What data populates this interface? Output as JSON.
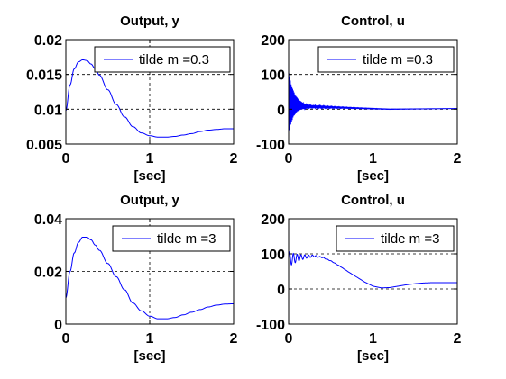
{
  "chart_data": [
    {
      "type": "line",
      "title": "Output, y",
      "xlabel": "[sec]",
      "ylabel": "",
      "xlim": [
        0,
        2
      ],
      "ylim": [
        0.005,
        0.02
      ],
      "xticks": [
        0,
        1,
        2
      ],
      "yticks": [
        0.005,
        0.01,
        0.015,
        0.02
      ],
      "ytick_labels": [
        "0.005",
        "0.01",
        "0.015",
        "0.02"
      ],
      "xtick_labels": [
        "0",
        "1",
        "2"
      ],
      "grid": true,
      "legend_position": "top-right",
      "series": [
        {
          "name": "tilde m =0.3",
          "color": "#0000ff",
          "x": [
            0,
            0.05,
            0.1,
            0.15,
            0.2,
            0.25,
            0.3,
            0.35,
            0.4,
            0.5,
            0.6,
            0.7,
            0.8,
            0.9,
            1.0,
            1.1,
            1.2,
            1.3,
            1.4,
            1.5,
            1.6,
            1.7,
            1.8,
            1.9,
            2.0
          ],
          "y": [
            0.0098,
            0.0135,
            0.0158,
            0.0168,
            0.0171,
            0.017,
            0.0165,
            0.0158,
            0.0149,
            0.0128,
            0.0107,
            0.0089,
            0.0075,
            0.0066,
            0.0062,
            0.006,
            0.006,
            0.0061,
            0.0063,
            0.0065,
            0.0068,
            0.007,
            0.0071,
            0.0072,
            0.0072
          ]
        }
      ]
    },
    {
      "type": "line",
      "title": "Control, u",
      "xlabel": "[sec]",
      "ylabel": "",
      "xlim": [
        0,
        2
      ],
      "ylim": [
        -100,
        200
      ],
      "xticks": [
        0,
        1,
        2
      ],
      "yticks": [
        -100,
        0,
        100,
        200
      ],
      "ytick_labels": [
        "-100",
        "0",
        "100",
        "200"
      ],
      "xtick_labels": [
        "0",
        "1",
        "2"
      ],
      "grid": true,
      "legend_position": "top-right",
      "series": [
        {
          "name": "tilde m =0.3",
          "color": "#0000ff",
          "description_values": {
            "oscillation_start_amplitude": 85,
            "oscillation_center": 18,
            "decay_time_constant": 0.06,
            "oscillation_period": 0.01,
            "steady_value_near_t1": 0,
            "value_at_t2": 2
          },
          "x": [
            0,
            0.1,
            0.2,
            0.4,
            0.6,
            0.8,
            1.0,
            1.2,
            1.4,
            1.6,
            1.8,
            2.0
          ],
          "y": [
            18,
            10,
            8,
            5,
            3,
            1,
            0,
            -1,
            0,
            1,
            2,
            2
          ]
        }
      ]
    },
    {
      "type": "line",
      "title": "Output, y",
      "xlabel": "[sec]",
      "ylabel": "",
      "xlim": [
        0,
        2
      ],
      "ylim": [
        0,
        0.04
      ],
      "xticks": [
        0,
        1,
        2
      ],
      "yticks": [
        0,
        0.02,
        0.04
      ],
      "ytick_labels": [
        "0",
        "0.02",
        "0.04"
      ],
      "xtick_labels": [
        "0",
        "1",
        "2"
      ],
      "grid": true,
      "legend_position": "top-right",
      "series": [
        {
          "name": "tilde m =3",
          "color": "#0000ff",
          "x": [
            0,
            0.05,
            0.1,
            0.15,
            0.2,
            0.25,
            0.3,
            0.35,
            0.4,
            0.5,
            0.6,
            0.7,
            0.8,
            0.9,
            1.0,
            1.1,
            1.2,
            1.3,
            1.4,
            1.5,
            1.6,
            1.7,
            1.8,
            1.9,
            2.0
          ],
          "y": [
            0.01,
            0.02,
            0.027,
            0.031,
            0.033,
            0.033,
            0.032,
            0.03,
            0.028,
            0.023,
            0.018,
            0.013,
            0.008,
            0.005,
            0.003,
            0.002,
            0.002,
            0.0025,
            0.0035,
            0.0045,
            0.0055,
            0.0065,
            0.0072,
            0.0076,
            0.0077
          ]
        }
      ]
    },
    {
      "type": "line",
      "title": "Control, u",
      "xlabel": "[sec]",
      "ylabel": "",
      "xlim": [
        0,
        2
      ],
      "ylim": [
        -100,
        200
      ],
      "xticks": [
        0,
        1,
        2
      ],
      "yticks": [
        -100,
        0,
        100,
        200
      ],
      "ytick_labels": [
        "-100",
        "0",
        "100",
        "200"
      ],
      "xtick_labels": [
        "0",
        "1",
        "2"
      ],
      "grid": true,
      "legend_position": "top-right",
      "series": [
        {
          "name": "tilde m =3",
          "color": "#0000ff",
          "x": [
            0,
            0.1,
            0.2,
            0.3,
            0.4,
            0.5,
            0.6,
            0.7,
            0.8,
            0.9,
            1.0,
            1.1,
            1.2,
            1.3,
            1.4,
            1.5,
            1.6,
            1.7,
            1.8,
            1.9,
            2.0
          ],
          "y": [
            85,
            88,
            92,
            94,
            90,
            80,
            66,
            50,
            35,
            20,
            8,
            3,
            4,
            8,
            12,
            15,
            17,
            18,
            18,
            18,
            18
          ]
        }
      ]
    }
  ]
}
